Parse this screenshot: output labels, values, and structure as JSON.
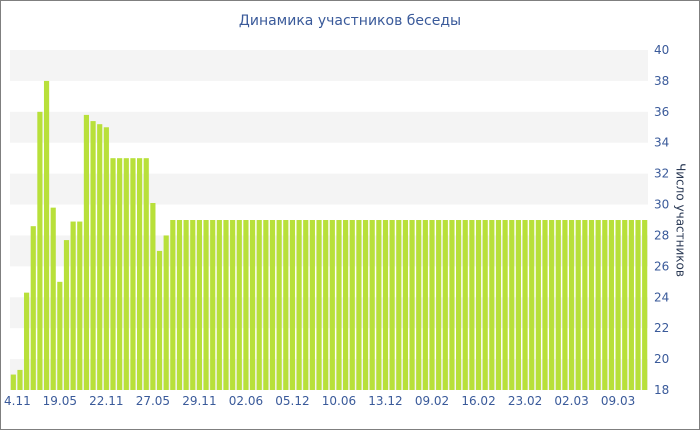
{
  "chart_data": {
    "type": "bar",
    "title": "Динамика участников беседы",
    "xlabel": "",
    "ylabel": "Число участников",
    "ylim": [
      18,
      40
    ],
    "yticks": [
      18,
      20,
      22,
      24,
      26,
      28,
      30,
      32,
      34,
      36,
      38,
      40
    ],
    "y_axis_side": "right",
    "grid": "alternating horizontal bands",
    "bar_color": "#b8e03a",
    "band_color": "#f4f4f4",
    "text_color": "#3a5a9a",
    "x_tick_labels": [
      "4.11",
      "19.05",
      "22.11",
      "27.05",
      "29.11",
      "02.06",
      "05.12",
      "10.06",
      "13.12",
      "09.02",
      "16.02",
      "23.02",
      "02.03",
      "09.03"
    ],
    "x_tick_bar_index": [
      0,
      7,
      14,
      21,
      28,
      35,
      42,
      49,
      56,
      63,
      70,
      77,
      84,
      91
    ],
    "values": [
      19,
      19.3,
      24.3,
      28.6,
      36,
      38,
      29.8,
      25,
      27.7,
      28.9,
      28.9,
      35.8,
      35.4,
      35.2,
      35,
      33,
      33,
      33,
      33,
      33,
      33,
      30.1,
      27,
      28,
      29,
      29,
      29,
      29,
      29,
      29,
      29,
      29,
      29,
      29,
      29,
      29,
      29,
      29,
      29,
      29,
      29,
      29,
      29,
      29,
      29,
      29,
      29,
      29,
      29,
      29,
      29,
      29,
      29,
      29,
      29,
      29,
      29,
      29,
      29,
      29,
      29,
      29,
      29,
      29,
      29,
      29,
      29,
      29,
      29,
      29,
      29,
      29,
      29,
      29,
      29,
      29,
      29,
      29,
      29,
      29,
      29,
      29,
      29,
      29,
      29,
      29,
      29,
      29,
      29,
      29,
      29,
      29,
      29,
      29,
      29,
      29
    ]
  }
}
